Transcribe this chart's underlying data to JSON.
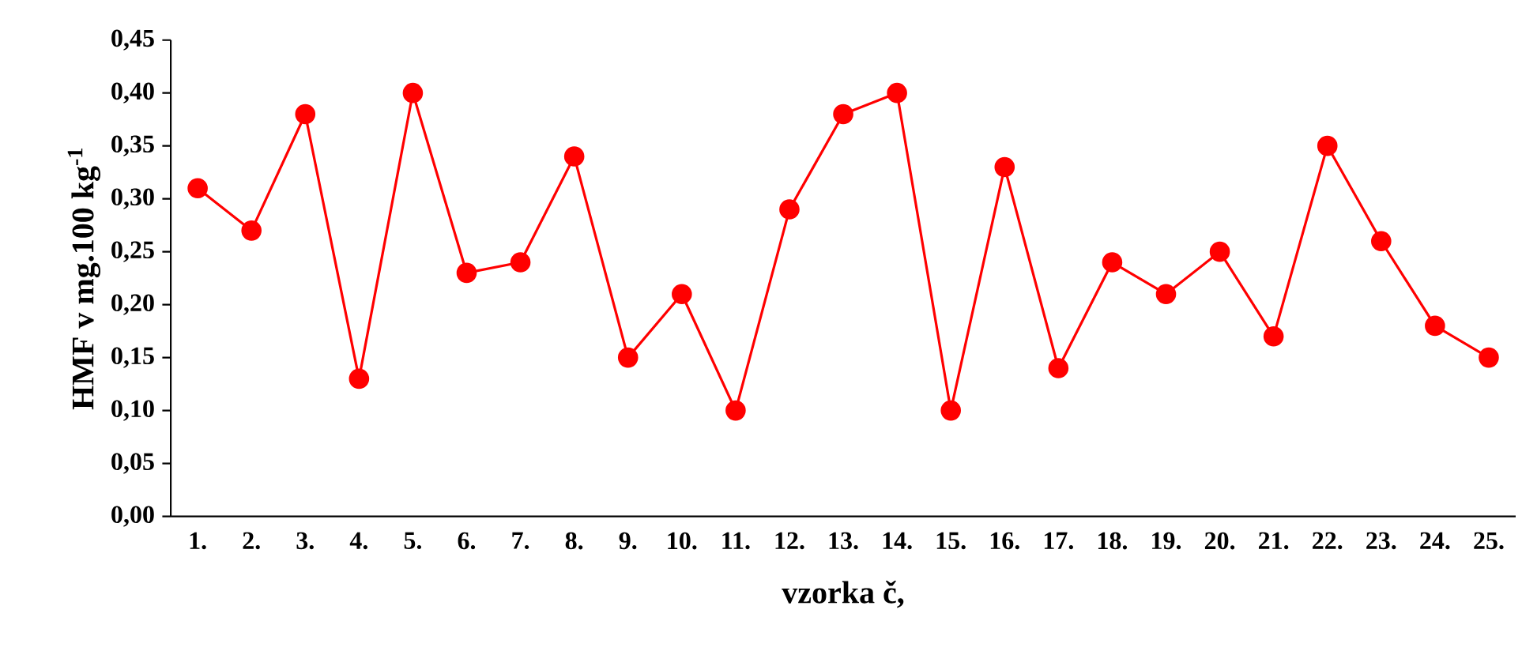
{
  "chart_data": {
    "type": "line",
    "xlabel": "vzorka č,",
    "ylabel": "HMF v mg.100 kg$^{-1}$",
    "categories": [
      "1.",
      "2.",
      "3.",
      "4.",
      "5.",
      "6.",
      "7.",
      "8.",
      "9.",
      "10.",
      "11.",
      "12.",
      "13.",
      "14.",
      "15.",
      "16.",
      "17.",
      "18.",
      "19.",
      "20.",
      "21.",
      "22.",
      "23.",
      "24.",
      "25."
    ],
    "series": [
      {
        "color": "#ff0000",
        "values": [
          0.31,
          0.27,
          0.38,
          0.13,
          0.4,
          0.23,
          0.24,
          0.34,
          0.15,
          0.21,
          0.1,
          0.29,
          0.38,
          0.4,
          0.1,
          0.33,
          0.14,
          0.24,
          0.21,
          0.25,
          0.17,
          0.35,
          0.26,
          0.18,
          0.15
        ]
      }
    ],
    "ylim": [
      0,
      0.45
    ],
    "yticks": [
      {
        "value": 0,
        "label": "0,00"
      },
      {
        "value": 0.05,
        "label": "0,05"
      },
      {
        "value": 0.1,
        "label": "0,10"
      },
      {
        "value": 0.15,
        "label": "0,15"
      },
      {
        "value": 0.2,
        "label": "0,20"
      },
      {
        "value": 0.25,
        "label": "0,25"
      },
      {
        "value": 0.3,
        "label": "0,30"
      },
      {
        "value": 0.35,
        "label": "0,35"
      },
      {
        "value": 0.4,
        "label": "0,40"
      },
      {
        "value": 0.45,
        "label": "0,45"
      }
    ],
    "marker": "circle",
    "line_style": "solid"
  }
}
